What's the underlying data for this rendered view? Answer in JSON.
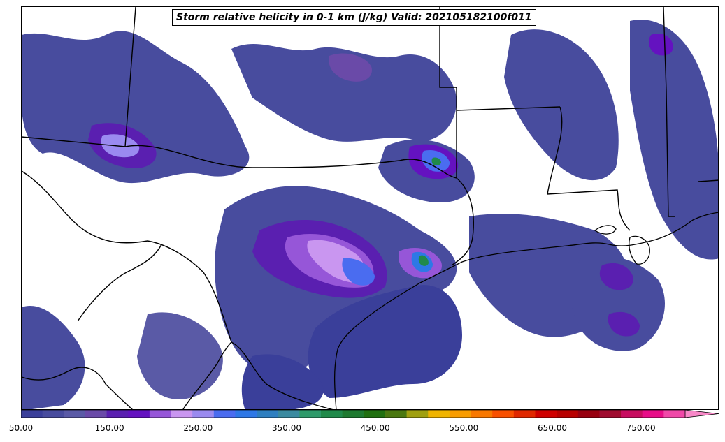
{
  "title": "Storm relative helicity in 0-1 km (J/kg) Valid: 202105182100f011",
  "colorbar": {
    "min": 50,
    "max": 800,
    "step": 25,
    "extend": "max",
    "colors": [
      "#3a3f9a",
      "#484c9e",
      "#5a5aa6",
      "#6a4aa8",
      "#5a1fb0",
      "#6412c0",
      "#9656d8",
      "#c996f0",
      "#9a8af0",
      "#4a6cf0",
      "#2e78e6",
      "#2e7fc0",
      "#3a8aa0",
      "#2e9a6a",
      "#208a4a",
      "#1e7a30",
      "#207010",
      "#4a7810",
      "#a0a010",
      "#f0b400",
      "#f89c00",
      "#f87800",
      "#f85000",
      "#e02800",
      "#d00000",
      "#b80000",
      "#980010",
      "#a00c30",
      "#c80c60",
      "#e80c88",
      "#f048a8",
      "#f888c8"
    ],
    "tick_labels": [
      "50.00",
      "150.00",
      "250.00",
      "350.00",
      "450.00",
      "550.00",
      "650.00",
      "750.00"
    ],
    "tick_values": [
      50,
      150,
      250,
      350,
      450,
      550,
      650,
      750
    ]
  },
  "map": {
    "region": "Southern Plains / Gulf Coast",
    "background_color": "#ffffff",
    "boundary_color": "#000000",
    "field_colors": {
      "low": "#3a3f9a",
      "mid": "#5a1fb0",
      "high": "#c996f0",
      "peak": "#4a6cf0",
      "core": "#208a4a"
    }
  }
}
